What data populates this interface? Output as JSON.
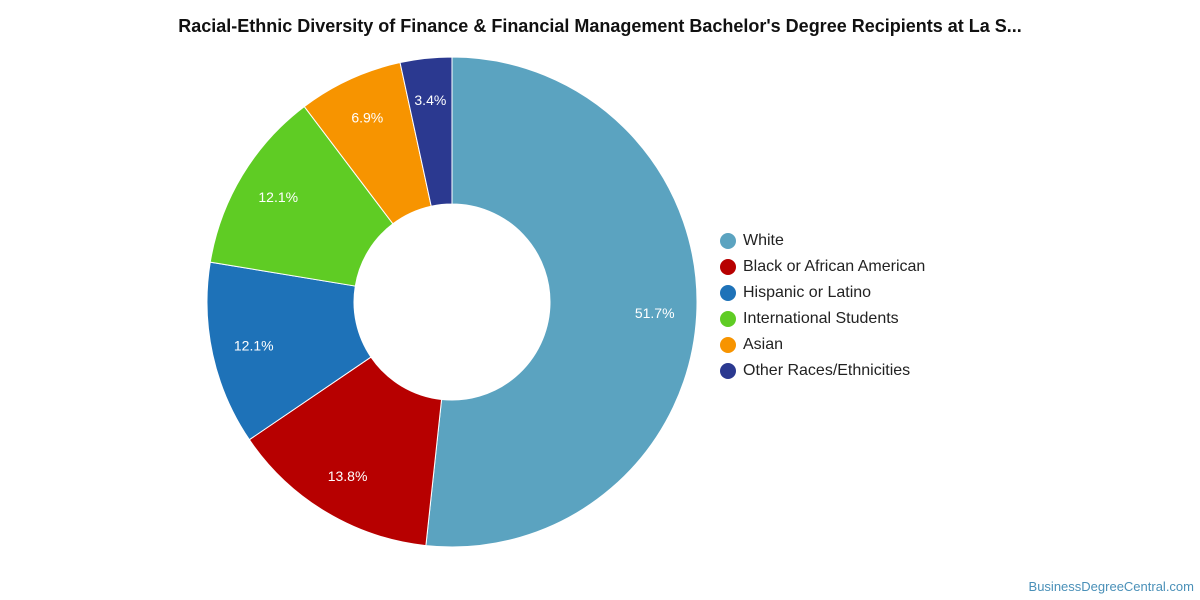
{
  "chart_data": {
    "type": "pie",
    "title": "Racial-Ethnic Diversity of Finance & Financial Management Bachelor's Degree Recipients at La S...",
    "donut": true,
    "legend_position": "right",
    "slices": [
      {
        "name": "White",
        "value": 51.7,
        "label": "51.7%",
        "color": "#5ba3c0"
      },
      {
        "name": "Black or African American",
        "value": 13.8,
        "label": "13.8%",
        "color": "#b70000"
      },
      {
        "name": "Hispanic or Latino",
        "value": 12.1,
        "label": "12.1%",
        "color": "#1e72b8"
      },
      {
        "name": "International Students",
        "value": 12.1,
        "label": "12.1%",
        "color": "#5fcc24"
      },
      {
        "name": "Asian",
        "value": 6.9,
        "label": "6.9%",
        "color": "#f79400"
      },
      {
        "name": "Other Races/Ethnicities",
        "value": 3.4,
        "label": "3.4%",
        "color": "#2b3990"
      }
    ]
  },
  "footer": {
    "source": "BusinessDegreeCentral.com"
  }
}
